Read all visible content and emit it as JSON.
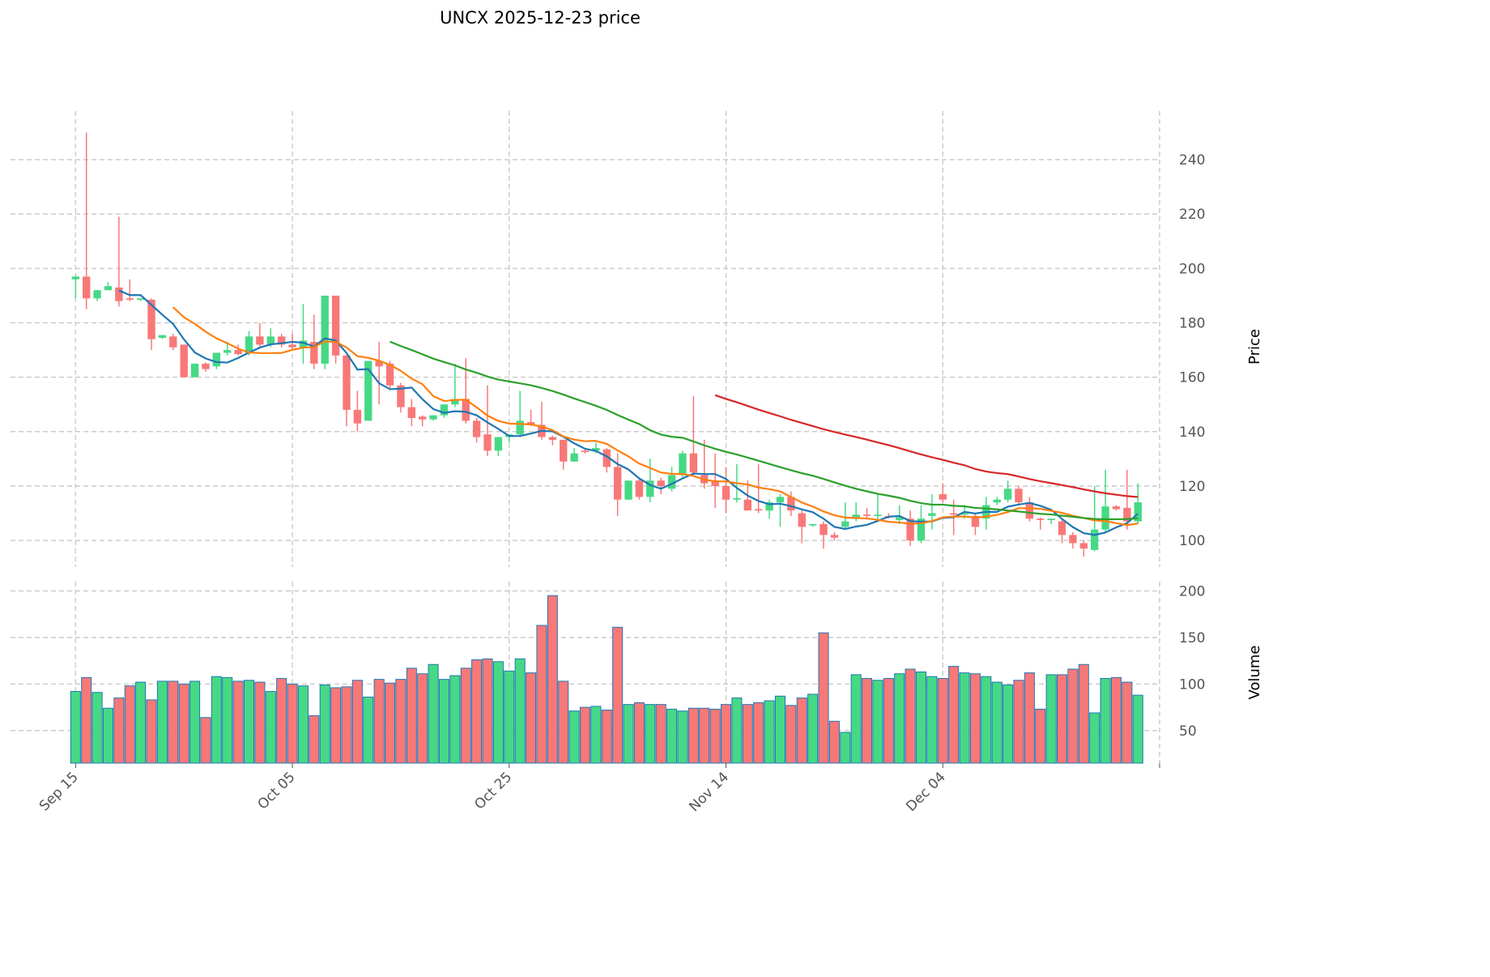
{
  "chart_data": {
    "type": "candlestick",
    "title": "UNCX  2025-12-23  price",
    "price_panel": {
      "ylabel": "Price",
      "ylim": [
        90.2,
        257.9
      ],
      "yticks": [
        100,
        120,
        140,
        160,
        180,
        200,
        220,
        240
      ],
      "grid": true
    },
    "volume_panel": {
      "ylabel": "Volume",
      "ylim": [
        15,
        210
      ],
      "yticks": [
        50,
        100,
        150,
        200
      ],
      "grid": true
    },
    "xlim": [
      -6,
      100
    ],
    "xticks": [
      {
        "index": 0,
        "label": "Sep 15"
      },
      {
        "index": 20,
        "label": "Oct 05"
      },
      {
        "index": 40,
        "label": "Oct 25"
      },
      {
        "index": 60,
        "label": "Nov 14"
      },
      {
        "index": 80,
        "label": "Dec 04"
      },
      {
        "index": 100,
        "label": ""
      }
    ],
    "colors": {
      "up": "#46d985",
      "down": "#f87878",
      "volume_edge": "#1f77b4",
      "grid": "#cccccc"
    },
    "moving_averages": [
      {
        "window": 5,
        "color": "#1f77b4"
      },
      {
        "window": 10,
        "color": "#ff7f0e"
      },
      {
        "window": 30,
        "color": "#2ca02c"
      },
      {
        "window": 60,
        "color": "#d62728"
      }
    ],
    "start_date": "2025-09-15",
    "ohlc": [
      [
        196,
        197.5,
        189,
        197
      ],
      [
        197,
        250,
        185,
        189
      ],
      [
        189,
        192,
        188,
        192
      ],
      [
        192,
        195,
        192,
        193.5
      ],
      [
        193,
        219,
        186,
        188
      ],
      [
        189,
        196,
        188,
        188.5
      ],
      [
        188.5,
        189,
        188,
        189
      ],
      [
        188.5,
        189,
        170,
        174
      ],
      [
        174.5,
        175.5,
        174,
        175.5
      ],
      [
        175,
        176,
        170,
        171
      ],
      [
        172,
        172,
        160,
        160
      ],
      [
        160,
        165,
        160,
        165
      ],
      [
        165,
        165.5,
        162,
        163
      ],
      [
        164,
        169,
        163,
        169
      ],
      [
        169,
        173,
        168,
        170
      ],
      [
        170,
        172,
        168,
        168.5
      ],
      [
        169,
        177,
        168,
        175
      ],
      [
        175,
        180,
        171,
        172
      ],
      [
        172,
        178,
        171,
        175
      ],
      [
        175,
        176,
        171,
        172
      ],
      [
        172,
        176,
        170,
        171
      ],
      [
        171,
        187,
        165,
        173.5
      ],
      [
        173,
        183,
        163,
        165
      ],
      [
        165,
        190,
        163,
        190
      ],
      [
        190,
        190,
        165,
        168
      ],
      [
        168,
        168,
        142,
        148
      ],
      [
        148,
        155,
        140,
        143
      ],
      [
        144,
        166,
        144,
        166
      ],
      [
        166,
        173,
        150,
        164
      ],
      [
        165,
        166,
        156,
        157
      ],
      [
        157,
        158,
        147,
        149
      ],
      [
        149,
        152,
        142,
        145
      ],
      [
        145.5,
        146,
        142,
        144.5
      ],
      [
        144.5,
        146,
        144,
        146
      ],
      [
        146,
        150,
        145,
        150
      ],
      [
        150,
        165,
        149,
        152
      ],
      [
        152,
        167,
        143,
        144
      ],
      [
        144,
        145,
        136,
        138
      ],
      [
        139,
        157,
        131,
        133
      ],
      [
        133,
        138,
        131,
        138
      ],
      [
        138,
        139,
        136,
        139
      ],
      [
        139,
        155,
        138,
        144
      ],
      [
        143.5,
        148,
        142,
        142.5
      ],
      [
        142.5,
        151,
        137,
        138
      ],
      [
        138,
        138.5,
        135,
        137
      ],
      [
        137,
        137,
        126,
        129
      ],
      [
        129,
        134,
        129,
        132
      ],
      [
        133,
        133.5,
        132,
        132.5
      ],
      [
        133,
        136,
        132,
        134
      ],
      [
        133.5,
        134,
        125,
        127
      ],
      [
        127,
        132,
        109,
        115
      ],
      [
        115,
        122,
        115,
        122
      ],
      [
        122,
        123,
        115,
        116
      ],
      [
        116,
        130,
        114,
        122
      ],
      [
        122,
        123,
        117,
        120
      ],
      [
        119,
        127,
        118,
        124
      ],
      [
        124,
        133,
        123,
        132
      ],
      [
        132,
        153,
        124,
        125
      ],
      [
        124,
        137,
        119,
        121
      ],
      [
        122,
        132,
        112,
        120
      ],
      [
        120,
        127,
        110,
        115
      ],
      [
        115,
        128,
        114,
        115.5
      ],
      [
        115,
        122,
        111,
        111
      ],
      [
        111.5,
        128,
        110,
        111
      ],
      [
        111,
        115,
        108,
        114
      ],
      [
        114,
        117,
        105,
        116
      ],
      [
        116,
        118,
        109,
        111
      ],
      [
        110,
        111,
        99,
        105
      ],
      [
        105.5,
        106,
        105,
        106
      ],
      [
        106,
        107,
        97,
        102
      ],
      [
        102,
        103,
        100,
        101
      ],
      [
        105,
        114,
        104,
        107
      ],
      [
        108,
        114,
        107,
        109.5
      ],
      [
        109.5,
        112,
        108,
        109
      ],
      [
        109,
        117,
        108,
        109.5
      ],
      [
        109,
        110,
        108,
        108.5
      ],
      [
        107.5,
        113,
        106,
        108.5
      ],
      [
        108,
        111,
        98,
        100
      ],
      [
        100,
        113,
        99,
        108
      ],
      [
        109,
        117,
        104,
        110
      ],
      [
        117,
        121,
        114,
        115
      ],
      [
        110,
        115,
        102,
        109.5
      ],
      [
        109.5,
        113,
        108,
        110
      ],
      [
        109,
        110,
        102,
        105
      ],
      [
        108,
        116,
        104,
        113
      ],
      [
        114,
        116,
        113,
        115
      ],
      [
        115,
        122,
        114,
        119
      ],
      [
        119,
        120,
        113,
        114
      ],
      [
        114,
        116,
        107,
        108
      ],
      [
        108,
        108.5,
        104,
        107.5
      ],
      [
        107.5,
        108,
        106,
        108
      ],
      [
        107,
        108,
        99,
        102
      ],
      [
        102,
        103,
        97,
        99
      ],
      [
        99,
        100,
        94,
        97
      ],
      [
        96.5,
        120,
        96,
        104
      ],
      [
        104,
        126,
        103,
        112.5
      ],
      [
        112.5,
        113,
        111,
        111.5
      ],
      [
        112,
        126,
        104,
        107
      ],
      [
        107,
        121,
        106,
        114
      ]
    ],
    "volume": [
      92,
      107,
      91,
      74,
      85,
      98,
      102,
      83,
      103,
      103,
      100,
      103,
      64,
      108,
      107,
      103,
      104,
      102,
      92,
      106,
      100,
      98,
      66,
      99,
      96,
      97,
      104,
      86,
      105,
      101,
      105,
      117,
      111,
      121,
      105,
      109,
      117,
      126,
      127,
      124,
      114,
      127,
      112,
      163,
      195,
      103,
      71,
      75,
      76,
      72,
      161,
      78,
      80,
      78,
      78,
      73,
      71,
      74,
      74,
      73,
      78,
      85,
      78,
      80,
      82,
      87,
      77,
      85,
      89,
      155,
      60,
      48,
      110,
      106,
      104,
      106,
      111,
      116,
      113,
      108,
      106,
      119,
      112,
      111,
      108,
      102,
      99,
      104,
      112,
      73,
      110,
      110,
      116,
      121,
      69,
      106,
      107,
      102,
      88
    ]
  }
}
